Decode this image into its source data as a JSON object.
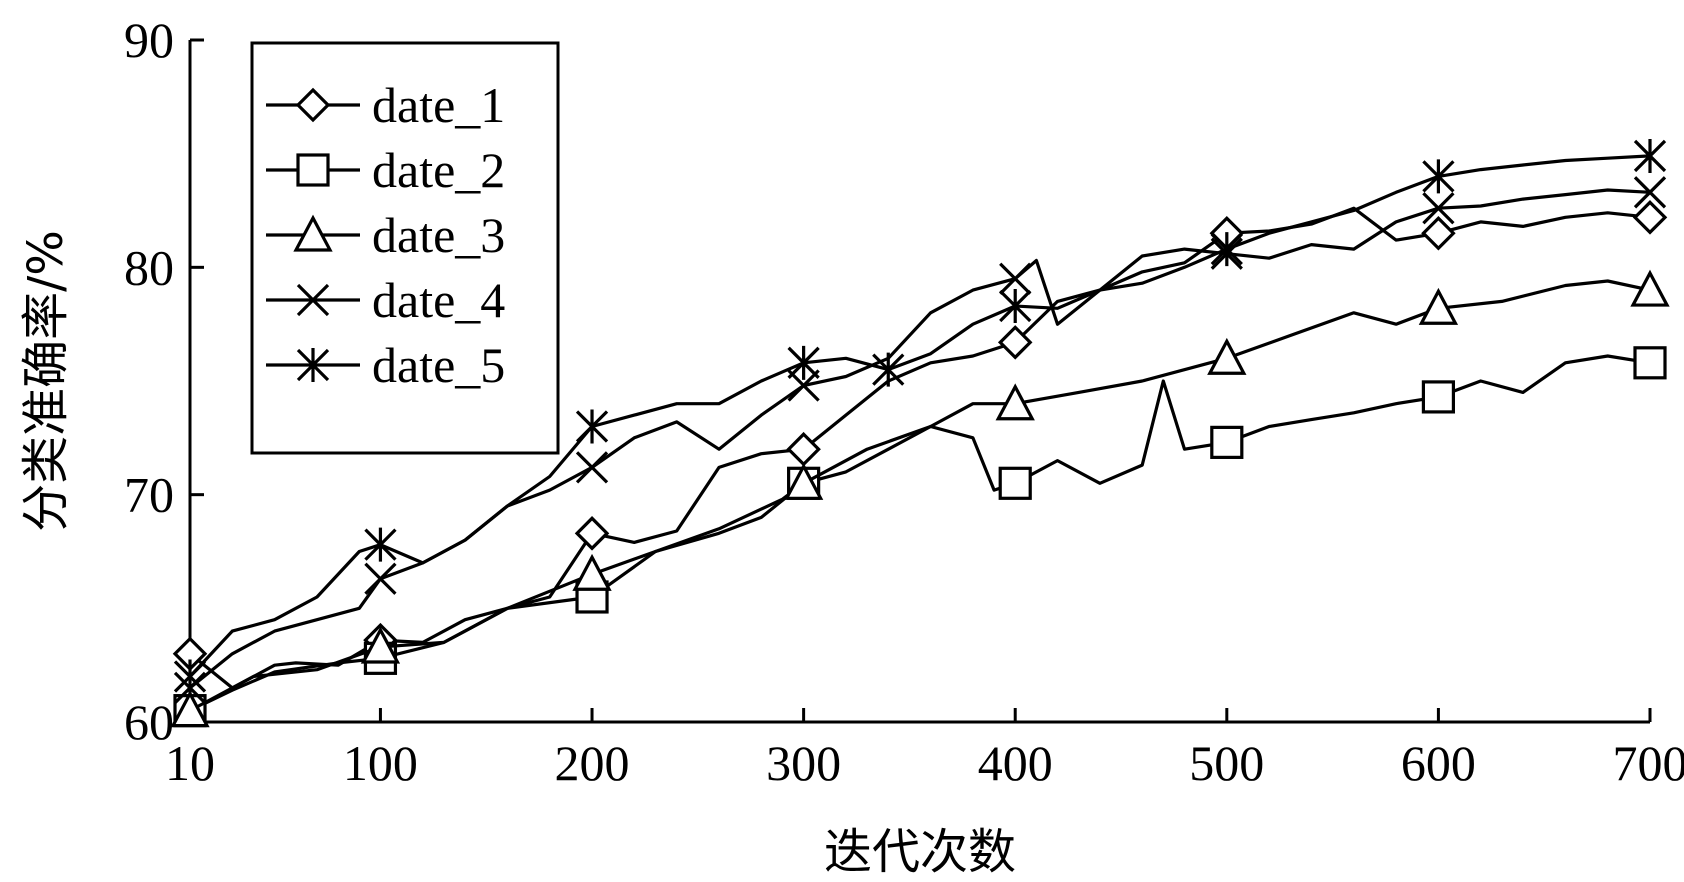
{
  "chart_data": {
    "type": "line",
    "title": "",
    "xlabel": "迭代次数",
    "ylabel": "分类准确率/%",
    "xlim": [
      10,
      700
    ],
    "ylim": [
      60,
      90
    ],
    "x_ticks": [
      "10",
      "100",
      "200",
      "300",
      "400",
      "500",
      "600",
      "700"
    ],
    "y_ticks": [
      "60",
      "70",
      "80",
      "90"
    ],
    "grid": false,
    "legend_position": "top-left",
    "series": [
      {
        "name": "date_1",
        "marker": "diamond",
        "x": [
          10,
          30,
          50,
          60,
          80,
          100,
          120,
          140,
          160,
          180,
          200,
          220,
          240,
          260,
          280,
          300,
          320,
          340,
          360,
          380,
          400,
          420,
          440,
          460,
          480,
          500,
          520,
          540,
          560,
          580,
          600,
          620,
          640,
          660,
          680,
          700
        ],
        "y": [
          63.0,
          61.5,
          62.5,
          62.6,
          62.5,
          63.6,
          63.5,
          64.5,
          65.0,
          65.5,
          68.3,
          67.9,
          68.4,
          71.2,
          71.8,
          72.0,
          73.5,
          75.0,
          75.8,
          76.1,
          76.7,
          78.5,
          79.0,
          79.8,
          80.2,
          81.5,
          81.6,
          81.9,
          82.6,
          81.2,
          81.5,
          82.0,
          81.8,
          82.2,
          82.4,
          82.2
        ],
        "marked_x": [
          10,
          100,
          200,
          300,
          400,
          500,
          600,
          700
        ]
      },
      {
        "name": "date_2",
        "marker": "square",
        "x": [
          10,
          30,
          50,
          80,
          100,
          130,
          160,
          200,
          230,
          260,
          280,
          300,
          320,
          340,
          360,
          380,
          390,
          400,
          420,
          440,
          460,
          470,
          480,
          500,
          520,
          540,
          560,
          580,
          600,
          620,
          640,
          660,
          680,
          700
        ],
        "y": [
          60.5,
          61.4,
          62.2,
          62.6,
          62.8,
          63.5,
          65.0,
          65.5,
          67.5,
          68.3,
          69.0,
          70.5,
          71.0,
          72.0,
          73.0,
          72.5,
          70.2,
          70.5,
          71.5,
          70.5,
          71.3,
          75.0,
          72.0,
          72.3,
          73.0,
          73.3,
          73.6,
          74.0,
          74.3,
          75.0,
          74.5,
          75.8,
          76.1,
          75.8
        ],
        "marked_x": [
          10,
          100,
          200,
          300,
          400,
          500,
          600,
          700
        ]
      },
      {
        "name": "date_3",
        "marker": "triangle",
        "x": [
          10,
          40,
          70,
          100,
          130,
          160,
          200,
          230,
          260,
          290,
          300,
          330,
          360,
          380,
          400,
          430,
          460,
          500,
          530,
          560,
          580,
          600,
          630,
          660,
          680,
          700
        ],
        "y": [
          60.5,
          62.0,
          62.3,
          63.3,
          63.5,
          65.0,
          66.5,
          67.5,
          68.5,
          69.8,
          70.5,
          72.0,
          73.0,
          74.0,
          74.0,
          74.5,
          75.0,
          76.0,
          77.0,
          78.0,
          77.5,
          78.2,
          78.5,
          79.2,
          79.4,
          79.0
        ],
        "marked_x": [
          10,
          100,
          200,
          300,
          400,
          500,
          600,
          700
        ]
      },
      {
        "name": "date_4",
        "marker": "x",
        "x": [
          10,
          30,
          50,
          70,
          90,
          100,
          120,
          140,
          160,
          180,
          200,
          220,
          240,
          260,
          280,
          300,
          320,
          340,
          360,
          380,
          400,
          410,
          420,
          440,
          460,
          480,
          500,
          520,
          540,
          560,
          580,
          600,
          620,
          640,
          660,
          680,
          700
        ],
        "y": [
          61.5,
          63.0,
          64.0,
          64.5,
          65.0,
          66.3,
          67.0,
          68.0,
          69.5,
          70.2,
          71.2,
          72.5,
          73.2,
          72.0,
          73.5,
          74.8,
          75.2,
          76.0,
          78.0,
          79.0,
          79.5,
          80.3,
          77.5,
          79.0,
          80.5,
          80.8,
          80.6,
          80.4,
          81.0,
          80.8,
          82.0,
          82.6,
          82.7,
          83.0,
          83.2,
          83.4,
          83.3
        ],
        "marked_x": [
          10,
          100,
          200,
          300,
          400,
          500,
          600,
          700
        ]
      },
      {
        "name": "date_5",
        "marker": "asterisk",
        "x": [
          10,
          30,
          50,
          70,
          90,
          100,
          120,
          140,
          160,
          180,
          200,
          220,
          240,
          260,
          280,
          300,
          320,
          340,
          360,
          380,
          400,
          420,
          440,
          460,
          480,
          500,
          520,
          540,
          560,
          580,
          600,
          620,
          640,
          660,
          680,
          700
        ],
        "y": [
          62.0,
          64.0,
          64.5,
          65.5,
          67.5,
          67.8,
          67.0,
          68.0,
          69.5,
          70.8,
          73.0,
          73.5,
          74.0,
          74.0,
          75.0,
          75.8,
          76.0,
          75.5,
          76.2,
          77.5,
          78.3,
          78.2,
          79.0,
          79.3,
          80.0,
          80.8,
          81.5,
          82.0,
          82.5,
          83.3,
          84.0,
          84.3,
          84.5,
          84.7,
          84.8,
          84.9
        ],
        "marked_x": [
          10,
          100,
          200,
          300,
          340,
          400,
          500,
          600,
          700
        ]
      }
    ]
  }
}
